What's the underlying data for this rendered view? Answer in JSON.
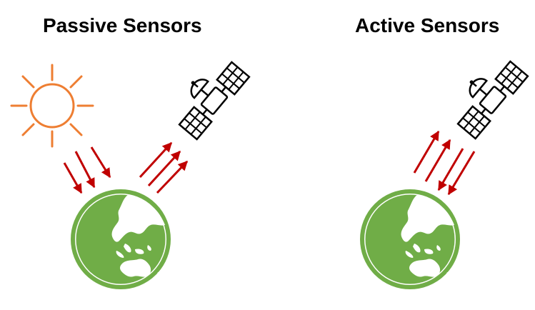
{
  "panels": {
    "passive": {
      "title": "Passive Sensors"
    },
    "active": {
      "title": "Active Sensors"
    }
  },
  "icons": {
    "sun": "sun-icon",
    "satellite": "satellite-icon",
    "earth": "earth-globe-icon",
    "arrow": "arrow-icon"
  },
  "colors": {
    "sun": "#EE7E32",
    "earth_ocean": "#70AD47",
    "earth_land": "#FFFFFF",
    "arrows": "#C00000",
    "satellite": "#000000"
  }
}
